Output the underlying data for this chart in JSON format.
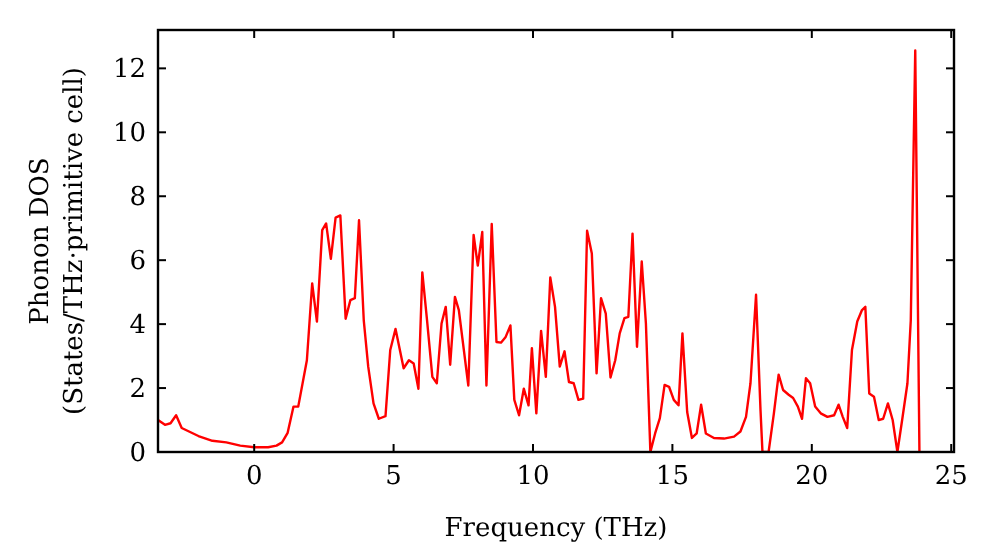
{
  "chart_data": {
    "type": "line",
    "xlabel": "Frequency (THz)",
    "ylabel": "Phonon DOS\n(States/THz·primitive cell)",
    "xlim": [
      -3.45,
      25.1
    ],
    "ylim": [
      0,
      13.2
    ],
    "xticks": [
      0,
      5,
      10,
      15,
      20,
      25
    ],
    "yticks": [
      0,
      2,
      4,
      6,
      8,
      10,
      12
    ],
    "grid": false,
    "marker": "none",
    "line_style": "solid",
    "series": [
      {
        "color": "#ff0000",
        "x": [
          -3.45,
          -3.2,
          -3.0,
          -2.8,
          -2.6,
          -2.0,
          -1.5,
          -1.0,
          -0.5,
          0.0,
          0.5,
          0.8,
          1.0,
          1.2,
          1.41,
          1.58,
          1.89,
          2.08,
          2.25,
          2.44,
          2.58,
          2.75,
          2.92,
          3.09,
          3.28,
          3.45,
          3.61,
          3.76,
          3.93,
          4.09,
          4.28,
          4.47,
          4.71,
          4.88,
          5.07,
          5.36,
          5.55,
          5.72,
          5.89,
          6.03,
          6.2,
          6.39,
          6.55,
          6.72,
          6.87,
          7.03,
          7.2,
          7.34,
          7.68,
          7.87,
          8.02,
          8.18,
          8.33,
          8.52,
          8.69,
          8.85,
          9.02,
          9.19,
          9.33,
          9.5,
          9.67,
          9.84,
          9.96,
          10.12,
          10.29,
          10.46,
          10.62,
          10.79,
          10.96,
          11.13,
          11.29,
          11.46,
          11.63,
          11.8,
          11.94,
          12.11,
          12.28,
          12.44,
          12.61,
          12.78,
          12.95,
          13.11,
          13.28,
          13.42,
          13.57,
          13.73,
          13.9,
          14.05,
          14.21,
          14.38,
          14.55,
          14.72,
          14.88,
          15.05,
          15.22,
          15.36,
          15.53,
          15.7,
          15.87,
          16.03,
          16.2,
          16.49,
          16.85,
          17.21,
          17.44,
          17.64,
          17.8,
          18.0,
          18.16,
          18.23,
          18.45,
          18.64,
          18.81,
          18.97,
          19.17,
          19.33,
          19.5,
          19.65,
          19.79,
          19.94,
          20.12,
          20.32,
          20.56,
          20.8,
          20.96,
          21.11,
          21.27,
          21.44,
          21.63,
          21.8,
          21.92,
          22.06,
          22.23,
          22.4,
          22.56,
          22.73,
          22.9,
          23.07,
          23.24,
          23.43,
          23.55,
          23.71,
          23.86
        ],
        "values": [
          1.0,
          0.85,
          0.9,
          1.15,
          0.75,
          0.5,
          0.35,
          0.3,
          0.2,
          0.15,
          0.15,
          0.2,
          0.3,
          0.6,
          1.42,
          1.42,
          2.87,
          5.27,
          4.08,
          6.94,
          7.15,
          6.04,
          7.33,
          7.4,
          4.17,
          4.75,
          4.81,
          7.25,
          4.12,
          2.67,
          1.52,
          1.04,
          1.12,
          3.19,
          3.85,
          2.62,
          2.87,
          2.77,
          1.98,
          5.62,
          4.12,
          2.35,
          2.15,
          4.02,
          4.54,
          2.73,
          4.85,
          4.44,
          2.08,
          6.79,
          5.83,
          6.88,
          2.08,
          7.13,
          3.44,
          3.42,
          3.6,
          3.96,
          1.63,
          1.15,
          1.98,
          1.46,
          3.25,
          1.21,
          3.79,
          2.35,
          5.46,
          4.54,
          2.67,
          3.15,
          2.19,
          2.15,
          1.63,
          1.67,
          6.92,
          6.21,
          2.46,
          4.81,
          4.33,
          2.33,
          2.87,
          3.71,
          4.19,
          4.23,
          6.83,
          3.29,
          5.96,
          4.02,
          0,
          0.58,
          1.06,
          2.1,
          2.04,
          1.63,
          1.46,
          3.71,
          1.25,
          0.44,
          0.58,
          1.48,
          0.58,
          0.44,
          0.42,
          0.48,
          0.64,
          1.1,
          2.15,
          4.92,
          1.31,
          0,
          0,
          1.21,
          2.42,
          1.94,
          1.79,
          1.69,
          1.42,
          1.04,
          2.31,
          2.15,
          1.42,
          1.21,
          1.1,
          1.15,
          1.48,
          1.1,
          0.75,
          3.19,
          4.08,
          4.44,
          4.54,
          1.83,
          1.73,
          1.0,
          1.04,
          1.52,
          1.0,
          0,
          1.0,
          2.15,
          4.12,
          12.56,
          0
        ]
      }
    ]
  }
}
